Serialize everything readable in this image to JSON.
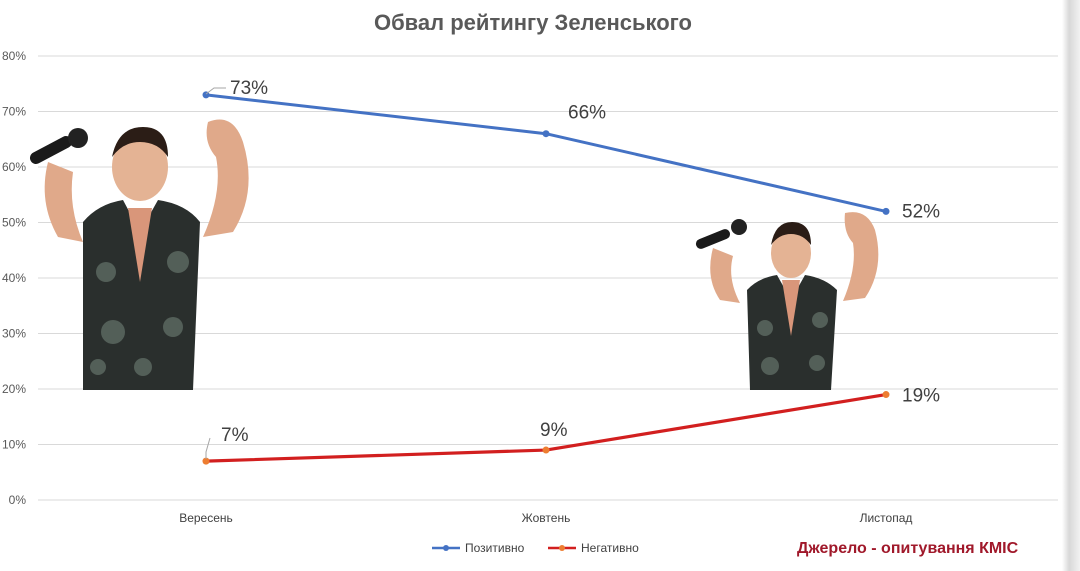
{
  "chart_data": {
    "type": "line",
    "title": "Обвал рейтингу Зеленського",
    "categories": [
      "Вересень",
      "Жовтень",
      "Листопад"
    ],
    "y_ticks": [
      "0%",
      "10%",
      "20%",
      "30%",
      "40%",
      "50%",
      "60%",
      "70%",
      "80%"
    ],
    "ylim": [
      0,
      80
    ],
    "grid": true,
    "legend_position": "bottom",
    "series": [
      {
        "name": "Позитивно",
        "values": [
          73,
          66,
          52
        ],
        "labels": [
          "73%",
          "66%",
          "52%"
        ],
        "color": "#4472c4"
      },
      {
        "name": "Негативно",
        "values": [
          7,
          9,
          19
        ],
        "labels": [
          "7%",
          "9%",
          "19%"
        ],
        "color": "#d21f1f"
      }
    ]
  },
  "source_note": "Джерело - опитування КМІС",
  "colors": {
    "positive_line": "#4472c4",
    "negative_line": "#d21f1f",
    "negative_marker": "#ed7d31",
    "source_text": "#a0182a",
    "gridline": "#d9d9d9"
  }
}
